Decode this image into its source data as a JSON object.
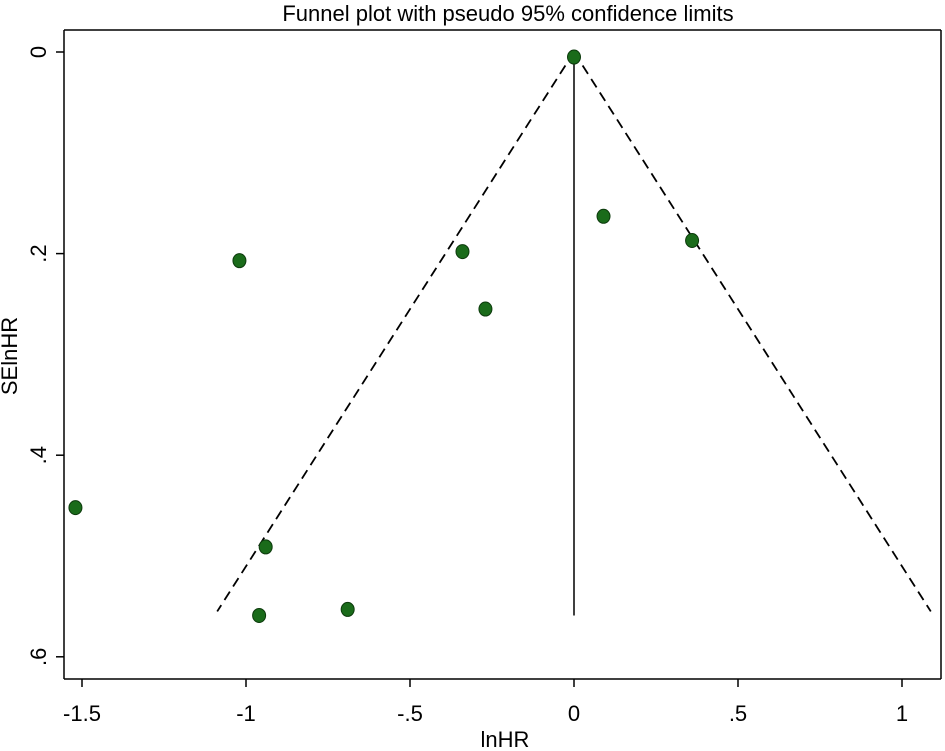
{
  "chart_data": {
    "type": "scatter",
    "title": "Funnel plot with pseudo 95% confidence limits",
    "xlabel": "lnHR",
    "ylabel": "SElnHR",
    "xlim": [
      -1.55,
      1.1
    ],
    "ylim": [
      0,
      0.62
    ],
    "y_reversed": true,
    "x_ticks": [
      -1.5,
      -1,
      -0.5,
      0,
      0.5,
      1
    ],
    "x_tick_labels": [
      "-1.5",
      "-1",
      "-.5",
      "0",
      ".5",
      "1"
    ],
    "y_ticks": [
      0,
      0.2,
      0.4,
      0.6
    ],
    "y_tick_labels": [
      "0",
      ".2",
      ".4",
      ".6"
    ],
    "grid": false,
    "legend": "none",
    "points": [
      {
        "x": 0.0,
        "y": 0.005
      },
      {
        "x": 0.09,
        "y": 0.163
      },
      {
        "x": 0.36,
        "y": 0.187
      },
      {
        "x": -0.34,
        "y": 0.198
      },
      {
        "x": -1.02,
        "y": 0.207
      },
      {
        "x": -0.27,
        "y": 0.255
      },
      {
        "x": -1.52,
        "y": 0.452
      },
      {
        "x": -0.94,
        "y": 0.491
      },
      {
        "x": -0.69,
        "y": 0.553
      },
      {
        "x": -0.96,
        "y": 0.559
      }
    ],
    "reference_line": {
      "x": 0,
      "y_range": [
        0,
        0.559
      ]
    },
    "confidence_limits": {
      "z": 1.96,
      "se_max": 0.555
    },
    "colors": {
      "points": "#1a6b1a",
      "point_outline": "#0c3a0c",
      "lines": "#000000"
    }
  }
}
